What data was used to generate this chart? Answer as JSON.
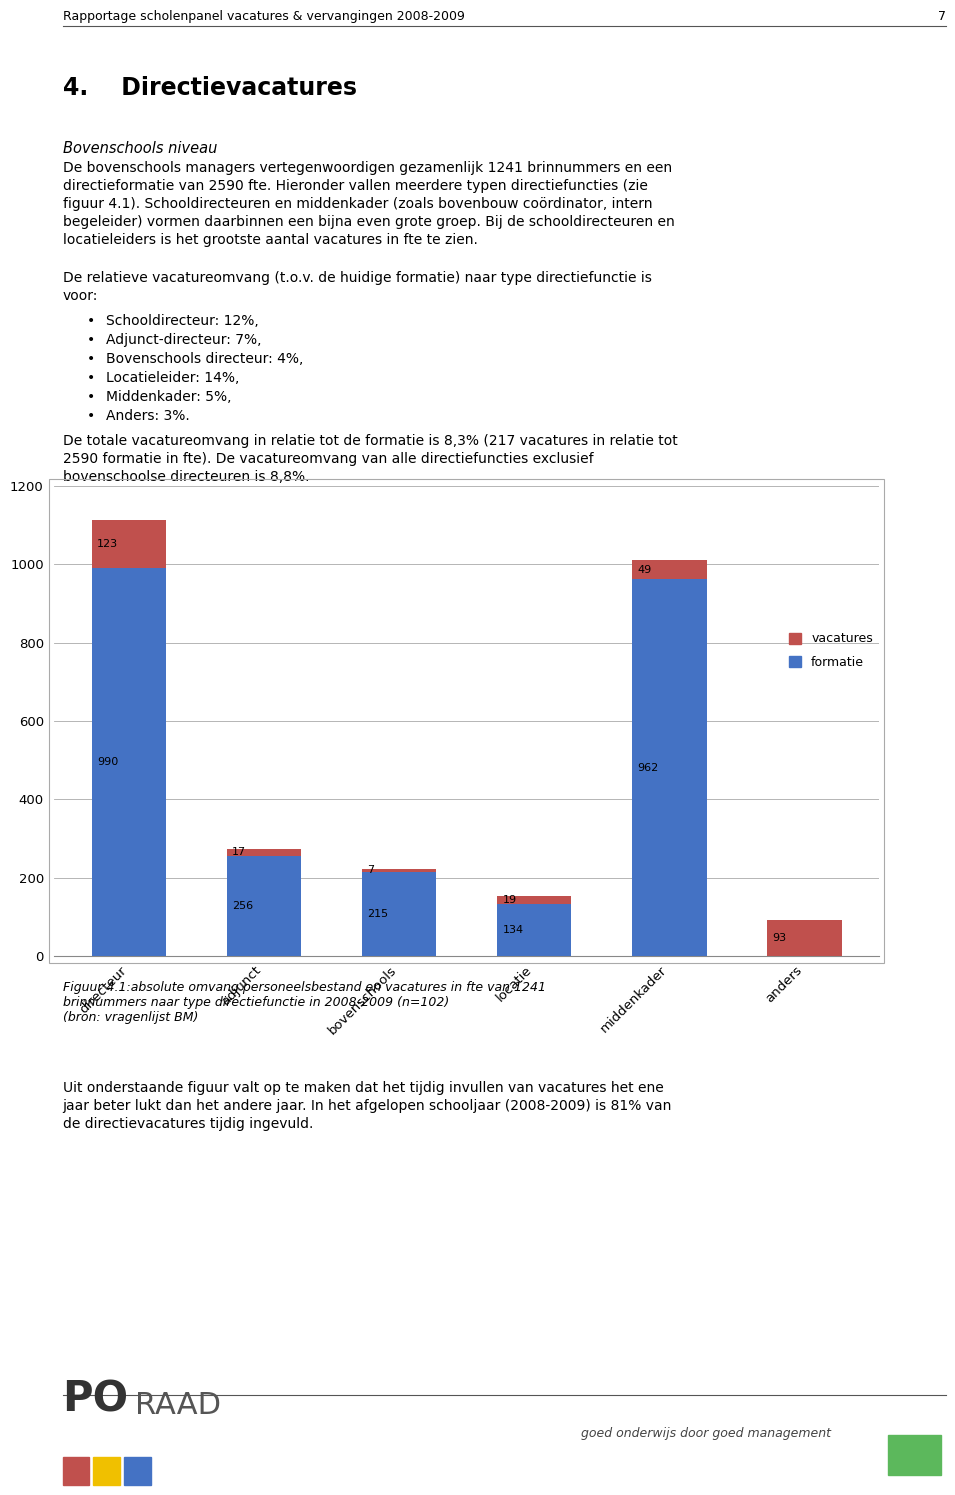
{
  "categories": [
    "directeur",
    "adjunct",
    "bovenschools",
    "locatie",
    "middenkader",
    "anders"
  ],
  "formatie": [
    990,
    256,
    215,
    134,
    962,
    0
  ],
  "vacatures": [
    123,
    17,
    7,
    19,
    49,
    93
  ],
  "formatie_color": "#4472C4",
  "vacatures_color": "#C0504D",
  "ylim": [
    0,
    1200
  ],
  "yticks": [
    0,
    200,
    400,
    600,
    800,
    1000,
    1200
  ],
  "legend_vacatures": "vacatures",
  "legend_formatie": "formatie",
  "page_title": "Rapportage scholenpanel vacatures & vervangingen 2008-2009",
  "page_number": "7",
  "section_title": "4.    Directievacatures",
  "sub_title1": "Bovenschools niveau",
  "figure_caption_line1": "Figuur 4.1:absolute omvang personeelsbestand en vacatures in fte van 1241",
  "figure_caption_line2": "brinnummers naar type directiefunctie in 2008-2009 (n=102)",
  "figure_caption_line3": "(bron: vragenlijst BM)",
  "bar_width": 0.55,
  "fig_bg": "#FFFFFF",
  "chart_bg": "#FFFFFF",
  "grid_color": "#AAAAAA"
}
